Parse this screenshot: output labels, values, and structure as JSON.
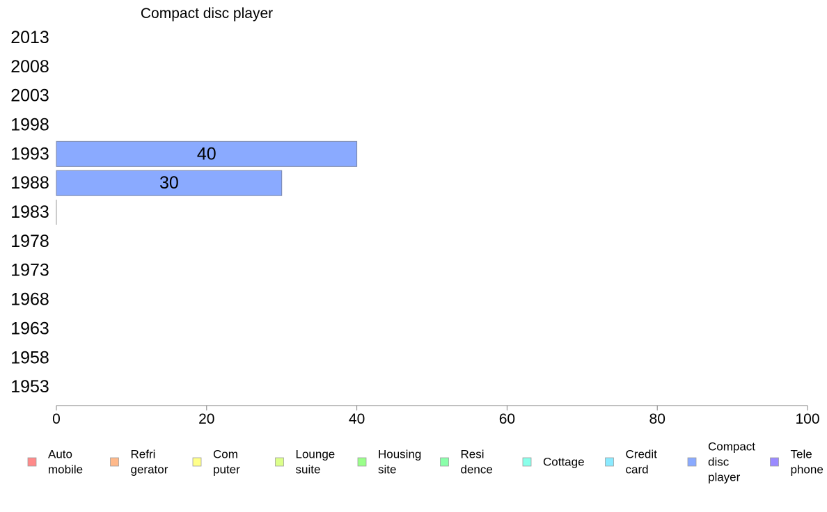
{
  "chart_data": {
    "type": "bar",
    "orientation": "horizontal",
    "title": "Compact disc player",
    "categories": [
      "1953",
      "1958",
      "1963",
      "1968",
      "1973",
      "1978",
      "1983",
      "1988",
      "1993",
      "1998",
      "2003",
      "2008",
      "2013"
    ],
    "series": [
      {
        "name": "Compact disc player",
        "color": "#8aaaff",
        "values": [
          null,
          null,
          null,
          null,
          null,
          null,
          0,
          30,
          40,
          null,
          null,
          null,
          null
        ],
        "labels": [
          "",
          "",
          "",
          "",
          "",
          "",
          "",
          "30",
          "40",
          "",
          "",
          "",
          ""
        ]
      }
    ],
    "xlim": [
      0,
      100
    ],
    "xticks": [
      "0",
      "20",
      "40",
      "60",
      "80",
      "100"
    ],
    "xlabel": "",
    "ylabel": "",
    "grid": false,
    "legend_position": "bottom",
    "legend": [
      {
        "lines": [
          "Auto",
          "mobile"
        ],
        "color": "#ff8a8a"
      },
      {
        "lines": [
          "Refri",
          "gerator"
        ],
        "color": "#ffb98a"
      },
      {
        "lines": [
          "Com",
          "puter"
        ],
        "color": "#ffff8a"
      },
      {
        "lines": [
          "Lounge",
          "suite"
        ],
        "color": "#dcff8a"
      },
      {
        "lines": [
          "Housing",
          "site"
        ],
        "color": "#9aff8a"
      },
      {
        "lines": [
          "Resi",
          "dence"
        ],
        "color": "#8affaa"
      },
      {
        "lines": [
          "Cottage"
        ],
        "color": "#8affea"
      },
      {
        "lines": [
          "Credit",
          "card"
        ],
        "color": "#8aeaff"
      },
      {
        "lines": [
          "Compact",
          "disc",
          "player"
        ],
        "color": "#8aaaff"
      },
      {
        "lines": [
          "Tele",
          "phone"
        ],
        "color": "#9a8aff"
      }
    ]
  }
}
